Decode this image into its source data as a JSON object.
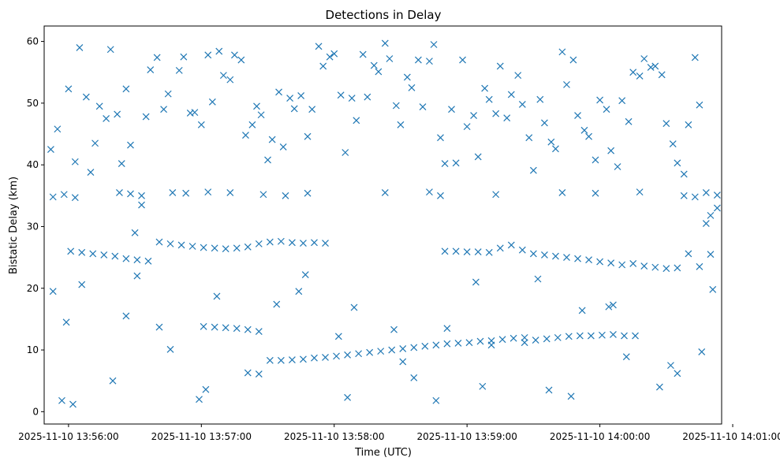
{
  "chart_data": {
    "type": "scatter",
    "title": "Detections in Delay",
    "xlabel": "Time (UTC)",
    "ylabel": "Bistatic Delay (km)",
    "marker": "x",
    "color": "#1f77b4",
    "grid": false,
    "xlim": [
      "2025-11-10 13:55:49",
      "2025-11-10 14:00:55"
    ],
    "ylim": [
      -2,
      62.5
    ],
    "xticks": [
      "2025-11-10 13:56:00",
      "2025-11-10 13:57:00",
      "2025-11-10 13:58:00",
      "2025-11-10 13:59:00",
      "2025-11-10 14:00:00",
      "2025-11-10 14:01:00"
    ],
    "yticks": [
      0,
      10,
      20,
      30,
      40,
      50,
      60
    ],
    "series": [
      {
        "name": "",
        "track_a": {
          "x": [
            "13:56:01",
            "13:56:06",
            "13:56:11",
            "13:56:16",
            "13:56:21",
            "13:56:26",
            "13:56:31",
            "13:56:36",
            "13:56:41",
            "13:56:46",
            "13:56:51",
            "13:56:56",
            "13:57:01",
            "13:57:06",
            "13:57:11",
            "13:57:16",
            "13:57:21",
            "13:57:26",
            "13:57:31",
            "13:57:36",
            "13:57:41",
            "13:57:46",
            "13:57:51",
            "13:57:56"
          ],
          "y": [
            26.0,
            25.8,
            25.6,
            25.4,
            25.2,
            24.8,
            24.6,
            24.4,
            27.5,
            27.2,
            27.0,
            26.8,
            26.6,
            26.5,
            26.4,
            26.5,
            26.7,
            27.2,
            27.5,
            27.6,
            27.4,
            27.3,
            27.4,
            27.3
          ]
        },
        "track_b": {
          "x": [
            "13:58:50",
            "13:58:55",
            "13:59:00",
            "13:59:05",
            "13:59:10",
            "13:59:15",
            "13:59:20",
            "13:59:25",
            "13:59:30",
            "13:59:35",
            "13:59:40",
            "13:59:45",
            "13:59:50",
            "13:59:55",
            "14:00:00",
            "14:00:05",
            "14:00:10",
            "14:00:15",
            "14:00:20",
            "14:00:25",
            "14:00:30",
            "14:00:35",
            "14:00:40",
            "14:00:45",
            "14:00:50"
          ],
          "y": [
            26.0,
            26.0,
            25.9,
            25.9,
            25.8,
            26.5,
            27.0,
            26.2,
            25.6,
            25.4,
            25.2,
            25.0,
            24.8,
            24.6,
            24.3,
            24.1,
            23.8,
            24.0,
            23.6,
            23.4,
            23.2,
            23.3,
            25.6,
            23.5,
            25.5
          ]
        },
        "track_c": {
          "x": [
            "13:57:01",
            "13:57:06",
            "13:57:11",
            "13:57:16",
            "13:57:21",
            "13:57:26",
            "13:57:31",
            "13:57:36",
            "13:57:41",
            "13:57:46",
            "13:57:51",
            "13:57:56",
            "13:58:01",
            "13:58:06",
            "13:58:11",
            "13:58:16",
            "13:58:21",
            "13:58:26",
            "13:58:31",
            "13:58:36",
            "13:58:41",
            "13:58:46",
            "13:58:51",
            "13:58:56",
            "13:59:01",
            "13:59:06",
            "13:59:11",
            "13:59:16",
            "13:59:21",
            "13:59:26",
            "13:59:31",
            "13:59:36",
            "13:59:41",
            "13:59:46",
            "13:59:51",
            "13:59:56",
            "14:00:01",
            "14:00:06",
            "14:00:11",
            "14:00:16"
          ],
          "y": [
            13.8,
            13.7,
            13.6,
            13.5,
            13.3,
            13.0,
            8.3,
            8.3,
            8.4,
            8.5,
            8.7,
            8.8,
            9.0,
            9.2,
            9.4,
            9.6,
            9.8,
            10.0,
            10.2,
            10.4,
            10.6,
            10.8,
            11.0,
            11.1,
            11.2,
            11.4,
            11.5,
            11.7,
            11.9,
            12.0,
            11.6,
            11.8,
            12.0,
            12.2,
            12.3,
            12.3,
            12.4,
            12.5,
            12.3,
            12.3
          ]
        },
        "band_35": {
          "x": [
            "13:55:53",
            "13:55:58",
            "13:56:03",
            "13:56:23",
            "13:56:28",
            "13:56:33",
            "13:56:53",
            "13:57:03",
            "13:57:13",
            "13:57:28",
            "13:57:38",
            "13:57:48",
            "13:58:23",
            "13:58:43",
            "13:58:48",
            "13:59:13",
            "13:59:43",
            "13:59:58",
            "14:00:18",
            "14:00:38",
            "14:00:43",
            "14:00:48",
            "14:00:53"
          ],
          "y": [
            34.8,
            35.2,
            34.7,
            35.5,
            35.3,
            35.0,
            35.4,
            35.6,
            35.5,
            35.2,
            35.0,
            35.4,
            35.5,
            35.6,
            35.0,
            35.2,
            35.5,
            35.4,
            35.6,
            35.0,
            34.8,
            35.5,
            35.1
          ]
        },
        "scattered": {
          "x": [
            "13:55:52",
            "13:55:53",
            "13:55:55",
            "13:55:57",
            "13:56:00",
            "13:56:03",
            "13:56:05",
            "13:56:08",
            "13:56:10",
            "13:56:12",
            "13:56:14",
            "13:56:17",
            "13:56:19",
            "13:56:22",
            "13:56:24",
            "13:56:26",
            "13:56:28",
            "13:56:30",
            "13:56:33",
            "13:56:35",
            "13:56:37",
            "13:56:40",
            "13:56:43",
            "13:56:45",
            "13:56:47",
            "13:56:50",
            "13:56:52",
            "13:56:55",
            "13:56:57",
            "13:57:00",
            "13:57:03",
            "13:57:05",
            "13:57:08",
            "13:57:10",
            "13:57:13",
            "13:57:15",
            "13:57:18",
            "13:57:20",
            "13:57:23",
            "13:57:25",
            "13:57:27",
            "13:57:30",
            "13:57:32",
            "13:57:35",
            "13:57:37",
            "13:57:40",
            "13:57:42",
            "13:57:45",
            "13:57:48",
            "13:57:50",
            "13:57:53",
            "13:57:55",
            "13:57:58",
            "13:58:00",
            "13:58:03",
            "13:58:05",
            "13:58:08",
            "13:58:10",
            "13:58:13",
            "13:58:15",
            "13:58:18",
            "13:58:20",
            "13:58:23",
            "13:58:25",
            "13:58:28",
            "13:58:30",
            "13:58:33",
            "13:58:35",
            "13:58:38",
            "13:58:40",
            "13:58:43",
            "13:58:45",
            "13:58:48",
            "13:58:50",
            "13:58:53",
            "13:58:55",
            "13:58:58",
            "13:59:00",
            "13:59:03",
            "13:59:05",
            "13:59:08",
            "13:59:10",
            "13:59:13",
            "13:59:15",
            "13:59:18",
            "13:59:20",
            "13:59:23",
            "13:59:25",
            "13:59:28",
            "13:59:30",
            "13:59:33",
            "13:59:35",
            "13:59:38",
            "13:59:40",
            "13:59:43",
            "13:59:45",
            "13:59:48",
            "13:59:50",
            "13:59:53",
            "13:59:55",
            "13:59:58",
            "14:00:00",
            "14:00:03",
            "14:00:05",
            "14:00:08",
            "14:00:10",
            "14:00:13",
            "14:00:15",
            "14:00:18",
            "14:00:20",
            "14:00:23",
            "14:00:25",
            "14:00:28",
            "14:00:30",
            "14:00:33",
            "14:00:35",
            "14:00:38",
            "14:00:40",
            "14:00:43",
            "14:00:45",
            "14:00:48",
            "14:00:50",
            "14:00:53",
            "13:55:59",
            "13:56:20",
            "13:56:41",
            "13:57:02",
            "13:57:21",
            "13:57:44",
            "13:58:06",
            "13:58:27",
            "13:58:46",
            "13:59:07",
            "13:59:26",
            "13:59:47",
            "14:00:06",
            "14:00:27",
            "14:00:46",
            "13:56:06",
            "13:56:26",
            "13:56:46",
            "13:57:07",
            "13:57:26",
            "13:57:47",
            "13:58:09",
            "13:58:31",
            "13:58:51",
            "13:59:11",
            "13:59:32",
            "13:59:52",
            "14:00:12",
            "14:00:32",
            "14:00:51",
            "13:56:02",
            "13:56:31",
            "13:56:59",
            "13:57:34",
            "13:58:02",
            "13:58:36",
            "13:59:04",
            "13:59:37",
            "14:00:04",
            "14:00:35"
          ],
          "y": [
            42.5,
            19.5,
            45.8,
            1.8,
            52.3,
            40.5,
            59.0,
            51.0,
            38.8,
            43.5,
            49.5,
            47.5,
            58.7,
            48.2,
            40.2,
            52.3,
            43.2,
            29.0,
            33.5,
            47.8,
            55.4,
            57.4,
            49.0,
            51.5,
            35.5,
            55.3,
            57.5,
            48.4,
            48.5,
            46.5,
            57.8,
            50.2,
            58.4,
            54.5,
            53.8,
            57.8,
            57.0,
            44.8,
            46.5,
            49.5,
            48.1,
            40.8,
            44.1,
            51.8,
            42.9,
            50.8,
            49.1,
            51.2,
            44.6,
            49.0,
            59.2,
            56.0,
            57.5,
            58.0,
            51.3,
            42.0,
            50.8,
            47.2,
            57.9,
            51.0,
            56.1,
            55.1,
            59.7,
            57.2,
            49.6,
            46.5,
            54.2,
            52.5,
            57.0,
            49.4,
            56.8,
            59.5,
            44.4,
            40.2,
            49.0,
            40.3,
            57.0,
            46.2,
            48.0,
            41.3,
            52.4,
            50.6,
            48.3,
            56.0,
            47.6,
            51.4,
            54.5,
            49.8,
            44.4,
            39.1,
            50.6,
            46.8,
            43.7,
            42.6,
            58.3,
            53.0,
            57.0,
            48.0,
            45.6,
            44.6,
            40.8,
            50.5,
            49.0,
            42.3,
            39.7,
            50.4,
            47.0,
            55.0,
            54.4,
            57.2,
            55.8,
            56.0,
            54.6,
            46.7,
            43.4,
            40.3,
            38.5,
            46.5,
            57.4,
            49.7,
            30.5,
            31.8,
            33.0,
            14.5,
            5.0,
            13.7,
            3.6,
            6.3,
            19.5,
            2.3,
            13.3,
            1.8,
            4.1,
            11.2,
            2.5,
            17.3,
            4.0,
            9.7,
            20.6,
            15.5,
            10.1,
            18.7,
            6.1,
            22.2,
            16.9,
            8.1,
            13.5,
            10.8,
            21.5,
            16.4,
            8.9,
            7.5,
            19.8,
            1.2,
            22.0,
            2.0,
            17.4,
            12.2,
            5.5,
            21.0,
            3.5,
            17.0,
            6.2
          ]
        }
      }
    ]
  }
}
